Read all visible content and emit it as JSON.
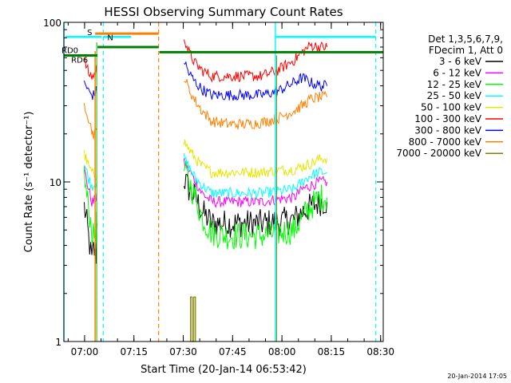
{
  "chart_data": {
    "type": "line",
    "title": "HESSI Observing Summary Count Rates",
    "xlabel": "Start Time (20-Jan-14 06:53:42)",
    "ylabel": "Count Rate (s⁻¹ detector⁻¹)",
    "y_scale": "log",
    "ylim": [
      1,
      100
    ],
    "y_ticks": [
      {
        "value": 1,
        "label": "1"
      },
      {
        "value": 10,
        "label": "10"
      },
      {
        "value": 100,
        "label": "100"
      }
    ],
    "x_ticks": [
      "07:00",
      "07:15",
      "07:30",
      "07:45",
      "08:00",
      "08:15",
      "08:30"
    ],
    "grid": false,
    "legend_position": "right",
    "legend_header": [
      "Det 1,3,5,6,7,9,",
      "FDecim 1, Att 0"
    ],
    "footer_date": "20-Jan-2014 17:05",
    "annotations": {
      "S": "S",
      "N": "N",
      "RD0": "RD0",
      "RD6": "RD6"
    },
    "series": [
      {
        "name": "3 - 6 keV",
        "color": "#000000",
        "values": [
          [
            6.2,
            7.0
          ],
          [
            7.0,
            5.5
          ],
          [
            7.5,
            4.5
          ],
          [
            8.5,
            3.2
          ],
          [
            9.0,
            3.8
          ],
          [
            9.8,
            3.5
          ],
          [
            10.0,
            5.5
          ],
          [
            36.5,
            10.5
          ],
          [
            38.0,
            9.0
          ],
          [
            40.0,
            8.0
          ],
          [
            42.0,
            6.5
          ],
          [
            45.0,
            5.5
          ],
          [
            50.0,
            5.5
          ],
          [
            55.0,
            5.5
          ],
          [
            60.0,
            5.5
          ],
          [
            65.0,
            5.6
          ],
          [
            70.0,
            5.8
          ],
          [
            72.5,
            6.5
          ],
          [
            75.0,
            7.0
          ],
          [
            78.0,
            7.5
          ],
          [
            80.0,
            7.5
          ]
        ]
      },
      {
        "name": "6 - 12 keV",
        "color": "#ff00ff",
        "values": [
          [
            6.2,
            12.0
          ],
          [
            7.0,
            10.0
          ],
          [
            7.5,
            9.0
          ],
          [
            8.5,
            7.5
          ],
          [
            9.0,
            7.5
          ],
          [
            9.8,
            8.0
          ],
          [
            10.0,
            8.5
          ],
          [
            36.5,
            13.0
          ],
          [
            38.0,
            12.0
          ],
          [
            40.0,
            10.0
          ],
          [
            42.0,
            8.5
          ],
          [
            45.0,
            7.5
          ],
          [
            50.0,
            7.5
          ],
          [
            55.0,
            7.5
          ],
          [
            60.0,
            7.5
          ],
          [
            65.0,
            7.8
          ],
          [
            70.0,
            8.0
          ],
          [
            72.5,
            9.0
          ],
          [
            75.0,
            9.5
          ],
          [
            78.0,
            10.0
          ],
          [
            80.0,
            10.0
          ]
        ]
      },
      {
        "name": "12 - 25 keV",
        "color": "#00ff00",
        "values": [
          [
            6.2,
            11.0
          ],
          [
            7.0,
            8.0
          ],
          [
            7.5,
            7.0
          ],
          [
            8.5,
            5.0
          ],
          [
            9.0,
            4.5
          ],
          [
            9.8,
            5.0
          ],
          [
            10.0,
            6.0
          ],
          [
            36.5,
            12.0
          ],
          [
            38.0,
            10.0
          ],
          [
            40.0,
            8.0
          ],
          [
            42.0,
            6.0
          ],
          [
            45.0,
            4.8
          ],
          [
            50.0,
            4.6
          ],
          [
            55.0,
            4.6
          ],
          [
            60.0,
            4.6
          ],
          [
            65.0,
            4.8
          ],
          [
            70.0,
            5.0
          ],
          [
            72.5,
            6.0
          ],
          [
            75.0,
            7.0
          ],
          [
            78.0,
            8.0
          ],
          [
            80.0,
            8.0
          ]
        ]
      },
      {
        "name": "25 - 50 keV",
        "color": "#00ffff",
        "values": [
          [
            6.2,
            13.0
          ],
          [
            7.0,
            11.5
          ],
          [
            7.5,
            10.5
          ],
          [
            8.5,
            9.5
          ],
          [
            9.0,
            9.5
          ],
          [
            9.8,
            10.0
          ],
          [
            10.0,
            10.0
          ],
          [
            36.5,
            14.0
          ],
          [
            38.0,
            12.5
          ],
          [
            40.0,
            10.5
          ],
          [
            42.0,
            9.5
          ],
          [
            45.0,
            8.5
          ],
          [
            50.0,
            8.5
          ],
          [
            55.0,
            8.5
          ],
          [
            60.0,
            8.5
          ],
          [
            65.0,
            8.7
          ],
          [
            70.0,
            9.0
          ],
          [
            72.5,
            10.0
          ],
          [
            75.0,
            11.0
          ],
          [
            78.0,
            11.5
          ],
          [
            80.0,
            11.5
          ]
        ]
      },
      {
        "name": "50 - 100 keV",
        "color": "#e6e600",
        "values": [
          [
            6.2,
            15.0
          ],
          [
            7.0,
            13.5
          ],
          [
            7.5,
            12.5
          ],
          [
            8.5,
            11.5
          ],
          [
            9.0,
            11.0
          ],
          [
            9.8,
            11.0
          ],
          [
            10.0,
            11.0
          ],
          [
            36.5,
            18.0
          ],
          [
            38.0,
            16.0
          ],
          [
            40.0,
            14.0
          ],
          [
            42.0,
            12.5
          ],
          [
            45.0,
            11.5
          ],
          [
            50.0,
            11.5
          ],
          [
            55.0,
            11.5
          ],
          [
            60.0,
            11.5
          ],
          [
            65.0,
            11.8
          ],
          [
            70.0,
            12.0
          ],
          [
            72.5,
            12.5
          ],
          [
            75.0,
            13.0
          ],
          [
            78.0,
            14.0
          ],
          [
            80.0,
            14.0
          ]
        ]
      },
      {
        "name": "100 - 300 keV",
        "color": "#ff0000",
        "values": [
          [
            6.2,
            58.0
          ],
          [
            7.0,
            52.0
          ],
          [
            7.5,
            48.0
          ],
          [
            8.5,
            46.0
          ],
          [
            9.0,
            46.0
          ],
          [
            9.8,
            50.0
          ],
          [
            10.0,
            52.0
          ],
          [
            36.5,
            82.0
          ],
          [
            38.0,
            65.0
          ],
          [
            40.0,
            55.0
          ],
          [
            42.0,
            50.0
          ],
          [
            45.0,
            46.0
          ],
          [
            50.0,
            46.0
          ],
          [
            55.0,
            46.0
          ],
          [
            60.0,
            46.0
          ],
          [
            65.0,
            50.0
          ],
          [
            70.0,
            58.0
          ],
          [
            72.5,
            65.0
          ],
          [
            75.0,
            72.0
          ],
          [
            78.0,
            70.0
          ],
          [
            80.0,
            70.0
          ]
        ]
      },
      {
        "name": "300 - 800 keV",
        "color": "#0000ff",
        "values": [
          [
            6.2,
            42.0
          ],
          [
            7.0,
            39.0
          ],
          [
            7.5,
            37.0
          ],
          [
            8.5,
            35.0
          ],
          [
            9.0,
            35.0
          ],
          [
            9.8,
            37.0
          ],
          [
            10.0,
            38.0
          ],
          [
            36.5,
            58.0
          ],
          [
            38.0,
            48.0
          ],
          [
            40.0,
            42.0
          ],
          [
            42.0,
            38.0
          ],
          [
            45.0,
            35.0
          ],
          [
            50.0,
            35.0
          ],
          [
            55.0,
            35.0
          ],
          [
            60.0,
            35.0
          ],
          [
            65.0,
            37.0
          ],
          [
            70.0,
            42.0
          ],
          [
            72.5,
            45.0
          ],
          [
            75.0,
            42.0
          ],
          [
            78.0,
            40.0
          ],
          [
            80.0,
            40.0
          ]
        ]
      },
      {
        "name": "800 - 7000 keV",
        "color": "#ff8000",
        "values": [
          [
            6.2,
            31.0
          ],
          [
            7.0,
            28.0
          ],
          [
            7.5,
            25.0
          ],
          [
            8.5,
            21.0
          ],
          [
            9.0,
            20.0
          ],
          [
            9.8,
            20.5
          ],
          [
            10.0,
            21.0
          ],
          [
            36.5,
            46.0
          ],
          [
            38.0,
            38.0
          ],
          [
            40.0,
            32.0
          ],
          [
            42.0,
            28.0
          ],
          [
            45.0,
            24.0
          ],
          [
            50.0,
            23.0
          ],
          [
            55.0,
            23.0
          ],
          [
            60.0,
            23.5
          ],
          [
            65.0,
            25.0
          ],
          [
            70.0,
            28.0
          ],
          [
            72.5,
            30.0
          ],
          [
            75.0,
            33.0
          ],
          [
            78.0,
            34.0
          ],
          [
            80.0,
            34.0
          ]
        ]
      },
      {
        "name": "7000 - 20000 keV",
        "color": "#808000",
        "values": [
          [
            38.5,
            1.0
          ],
          [
            38.5,
            1.9
          ],
          [
            39.0,
            1.9
          ],
          [
            39.0,
            1.0
          ],
          [
            39.5,
            1.0
          ],
          [
            39.5,
            1.9
          ],
          [
            40.0,
            1.9
          ],
          [
            40.0,
            1.0
          ]
        ]
      }
    ]
  }
}
